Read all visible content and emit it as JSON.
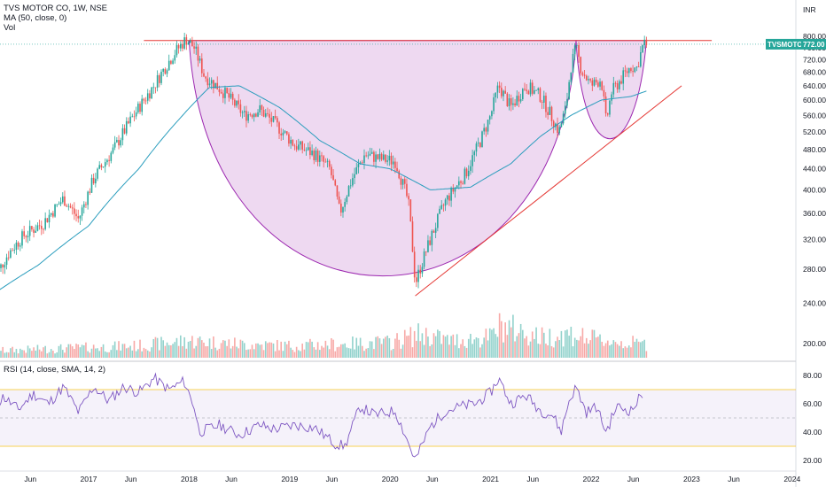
{
  "legend": {
    "symbol": "TVS MOTOR CO, 1W, NSE",
    "ma": "MA (50, close, 0)",
    "vol": "Vol",
    "rsi": "RSI (14, close, SMA, 14, 2)"
  },
  "price_badge": {
    "ticker": "TVSMOTOR",
    "price": "772.00"
  },
  "chart_data": {
    "type": "candlestick",
    "currency_label": "INR",
    "x_ticks": [
      "Jun",
      "2017",
      "Jun",
      "2018",
      "Jun",
      "2019",
      "Jun",
      "2020",
      "Jun",
      "2021",
      "Jun",
      "2022",
      "Jun",
      "2023",
      "Jun",
      "2024"
    ],
    "x_tick_years": [
      2016.42,
      2017.0,
      2017.42,
      2018.0,
      2018.42,
      2019.0,
      2019.42,
      2020.0,
      2020.42,
      2021.0,
      2021.42,
      2022.0,
      2022.42,
      2023.0,
      2023.42,
      2024.0
    ],
    "price_axis": {
      "ticks": [
        "800.00",
        "760.00",
        "720.00",
        "680.00",
        "640.00",
        "600.00",
        "560.00",
        "520.00",
        "480.00",
        "440.00",
        "400.00",
        "360.00",
        "320.00",
        "280.00",
        "240.00",
        "200.00"
      ],
      "range": [
        175,
        830
      ]
    },
    "rsi_axis": {
      "ticks": [
        "80.00",
        "60.00",
        "40.00",
        "20.00"
      ],
      "range": [
        15,
        85
      ],
      "upper_band": 70,
      "lower_band": 30,
      "mid": 50
    },
    "last_price": 772,
    "date_range": [
      2016.05,
      2022.55
    ],
    "price_path": [
      [
        2016.05,
        265
      ],
      [
        2016.2,
        300
      ],
      [
        2016.35,
        325
      ],
      [
        2016.55,
        345
      ],
      [
        2016.75,
        385
      ],
      [
        2016.9,
        350
      ],
      [
        2017.05,
        420
      ],
      [
        2017.25,
        480
      ],
      [
        2017.45,
        560
      ],
      [
        2017.65,
        640
      ],
      [
        2017.85,
        740
      ],
      [
        2017.97,
        790
      ],
      [
        2018.05,
        760
      ],
      [
        2018.15,
        670
      ],
      [
        2018.35,
        620
      ],
      [
        2018.55,
        560
      ],
      [
        2018.7,
        575
      ],
      [
        2018.85,
        540
      ],
      [
        2019.05,
        490
      ],
      [
        2019.25,
        470
      ],
      [
        2019.4,
        440
      ],
      [
        2019.5,
        360
      ],
      [
        2019.62,
        420
      ],
      [
        2019.75,
        470
      ],
      [
        2019.9,
        460
      ],
      [
        2020.05,
        455
      ],
      [
        2020.18,
        380
      ],
      [
        2020.25,
        262
      ],
      [
        2020.4,
        320
      ],
      [
        2020.55,
        380
      ],
      [
        2020.75,
        430
      ],
      [
        2020.9,
        500
      ],
      [
        2021.0,
        560
      ],
      [
        2021.08,
        640
      ],
      [
        2021.2,
        580
      ],
      [
        2021.35,
        640
      ],
      [
        2021.5,
        610
      ],
      [
        2021.6,
        560
      ],
      [
        2021.68,
        520
      ],
      [
        2021.75,
        580
      ],
      [
        2021.8,
        700
      ],
      [
        2021.85,
        760
      ],
      [
        2021.9,
        690
      ],
      [
        2022.0,
        640
      ],
      [
        2022.1,
        660
      ],
      [
        2022.15,
        540
      ],
      [
        2022.2,
        620
      ],
      [
        2022.3,
        660
      ],
      [
        2022.4,
        700
      ],
      [
        2022.45,
        690
      ],
      [
        2022.52,
        772
      ]
    ],
    "ma50_path": [
      [
        2016.05,
        250
      ],
      [
        2016.5,
        285
      ],
      [
        2017.0,
        340
      ],
      [
        2017.5,
        440
      ],
      [
        2017.9,
        550
      ],
      [
        2018.2,
        635
      ],
      [
        2018.5,
        640
      ],
      [
        2018.9,
        580
      ],
      [
        2019.3,
        500
      ],
      [
        2019.7,
        450
      ],
      [
        2020.0,
        440
      ],
      [
        2020.4,
        400
      ],
      [
        2020.8,
        405
      ],
      [
        2021.2,
        450
      ],
      [
        2021.5,
        510
      ],
      [
        2021.8,
        560
      ],
      [
        2022.1,
        600
      ],
      [
        2022.4,
        610
      ],
      [
        2022.55,
        625
      ]
    ],
    "rsi_path": [
      [
        2016.05,
        55
      ],
      [
        2016.15,
        65
      ],
      [
        2016.3,
        56
      ],
      [
        2016.45,
        67
      ],
      [
        2016.6,
        60
      ],
      [
        2016.75,
        72
      ],
      [
        2016.9,
        54
      ],
      [
        2017.05,
        72
      ],
      [
        2017.2,
        62
      ],
      [
        2017.35,
        72
      ],
      [
        2017.5,
        68
      ],
      [
        2017.65,
        78
      ],
      [
        2017.8,
        70
      ],
      [
        2017.95,
        76
      ],
      [
        2018.05,
        58
      ],
      [
        2018.1,
        40
      ],
      [
        2018.3,
        45
      ],
      [
        2018.5,
        38
      ],
      [
        2018.7,
        45
      ],
      [
        2018.85,
        42
      ],
      [
        2019.05,
        45
      ],
      [
        2019.25,
        43
      ],
      [
        2019.45,
        32
      ],
      [
        2019.55,
        30
      ],
      [
        2019.7,
        58
      ],
      [
        2019.85,
        52
      ],
      [
        2020.05,
        55
      ],
      [
        2020.15,
        38
      ],
      [
        2020.25,
        20
      ],
      [
        2020.4,
        44
      ],
      [
        2020.55,
        55
      ],
      [
        2020.7,
        58
      ],
      [
        2020.85,
        60
      ],
      [
        2021.0,
        68
      ],
      [
        2021.08,
        78
      ],
      [
        2021.2,
        60
      ],
      [
        2021.35,
        66
      ],
      [
        2021.5,
        55
      ],
      [
        2021.62,
        52
      ],
      [
        2021.7,
        40
      ],
      [
        2021.78,
        62
      ],
      [
        2021.85,
        72
      ],
      [
        2021.95,
        54
      ],
      [
        2022.05,
        58
      ],
      [
        2022.15,
        40
      ],
      [
        2022.25,
        58
      ],
      [
        2022.4,
        55
      ],
      [
        2022.52,
        68
      ]
    ],
    "volume_path": [
      [
        2016.05,
        20
      ],
      [
        2016.5,
        25
      ],
      [
        2017.0,
        30
      ],
      [
        2017.5,
        35
      ],
      [
        2018.0,
        50
      ],
      [
        2018.5,
        40
      ],
      [
        2019.0,
        35
      ],
      [
        2019.5,
        40
      ],
      [
        2020.0,
        45
      ],
      [
        2020.3,
        70
      ],
      [
        2020.6,
        50
      ],
      [
        2021.0,
        60
      ],
      [
        2021.1,
        95
      ],
      [
        2021.5,
        60
      ],
      [
        2021.8,
        70
      ],
      [
        2022.0,
        55
      ],
      [
        2022.3,
        45
      ],
      [
        2022.55,
        40
      ]
    ],
    "drawings": {
      "resistance_line": {
        "from": [
          2017.55,
          785
        ],
        "to": [
          2023.2,
          785
        ]
      },
      "cup": {
        "left": [
          2018.0,
          785
        ],
        "bottom": [
          2019.85,
          242
        ],
        "right": [
          2021.85,
          785
        ]
      },
      "handle": {
        "left": [
          2021.85,
          785
        ],
        "bottom": [
          2022.15,
          510
        ],
        "right": [
          2022.55,
          785
        ]
      },
      "trendline": {
        "from": [
          2020.25,
          248
        ],
        "to": [
          2022.9,
          640
        ]
      }
    }
  }
}
